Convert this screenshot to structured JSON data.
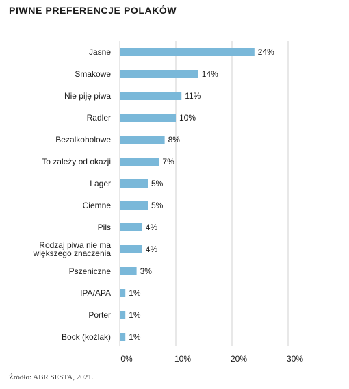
{
  "chart_data": {
    "type": "bar",
    "orientation": "horizontal",
    "title": "PIWNE PREFERENCJE POLAKÓW",
    "categories": [
      [
        "Jasne"
      ],
      [
        "Smakowe"
      ],
      [
        "Nie piję piwa"
      ],
      [
        "Radler"
      ],
      [
        "Bezalkoholowe"
      ],
      [
        "To zależy od okazji"
      ],
      [
        "Lager"
      ],
      [
        "Ciemne"
      ],
      [
        "Pils"
      ],
      [
        "Rodzaj piwa nie ma",
        "większego znaczenia"
      ],
      [
        "Pszeniczne"
      ],
      [
        "IPA/APA"
      ],
      [
        "Porter"
      ],
      [
        "Bock (koźlak)"
      ]
    ],
    "values": [
      24,
      14,
      11,
      10,
      8,
      7,
      5,
      5,
      4,
      4,
      3,
      1,
      1,
      1
    ],
    "value_labels": [
      "24%",
      "14%",
      "11%",
      "10%",
      "8%",
      "7%",
      "5%",
      "5%",
      "4%",
      "4%",
      "3%",
      "1%",
      "1%",
      "1%"
    ],
    "xlim": [
      0,
      30
    ],
    "xticks": [
      0,
      10,
      20,
      30
    ],
    "xtick_labels": [
      "0%",
      "10%",
      "20%",
      "30%"
    ],
    "grid": "vertical",
    "colors": {
      "bar": "#7ab8d9",
      "grid": "#d0d0d0",
      "text": "#1a1a1a"
    }
  },
  "source": "Źródło: ABR SESTA, 2021."
}
